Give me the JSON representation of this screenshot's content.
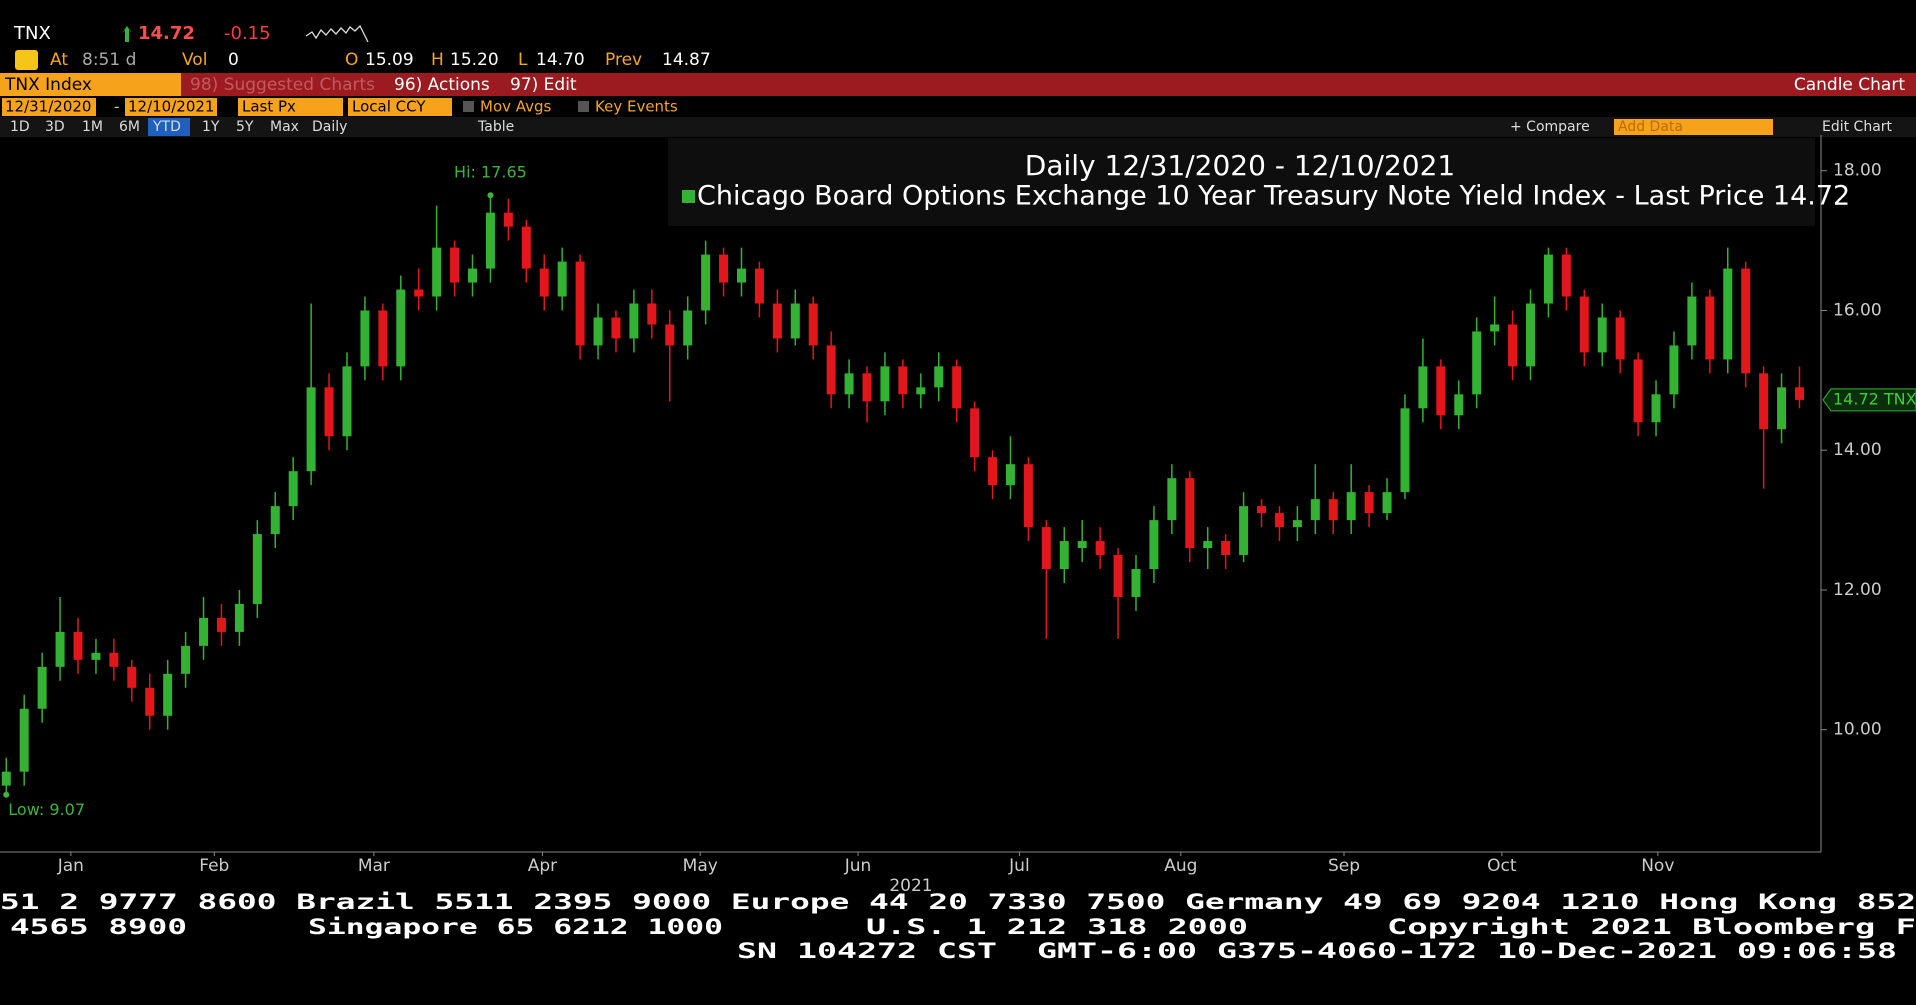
{
  "header": {
    "ticker": "TNX",
    "last": "14.72",
    "change": "-0.15",
    "at": "At",
    "time": "8:51 d",
    "vol_label": "Vol",
    "vol": "0",
    "open_label": "O",
    "open": "15.09",
    "high_label": "H",
    "high": "15.20",
    "low_label": "L",
    "low": "14.70",
    "prev_label": "Prev",
    "prev": "14.87"
  },
  "toolbar": {
    "security": "TNX Index",
    "suggested": "98) Suggested Charts",
    "actions": "96) Actions",
    "edit": "97) Edit",
    "chart_type": "Candle Chart",
    "start": "12/31/2020",
    "dash": "-",
    "end": "12/10/2021",
    "field": "Last Px",
    "currency": "Local CCY",
    "mov_avgs": "Mov Avgs",
    "key_events": "Key Events",
    "periods": [
      "1D",
      "3D",
      "1M",
      "6M",
      "YTD",
      "1Y",
      "5Y",
      "Max"
    ],
    "frequency": "Daily",
    "table": "Table",
    "compare": "+ Compare",
    "add_data": "Add Data",
    "edit_chart": "Edit Chart"
  },
  "footer": {
    "lines": [
      [
        "51 2 9777 8600 Brazil 5511 2395 9000 Europe 44 20 7330 7500 Germany 49 69 9204 1210 Hong Kong 852"
      ],
      [
        "4565 8900",
        "Singapore 65 6212 1000",
        "U.S. 1 212 318 2000",
        "Copyright 2021 Bloomberg F"
      ],
      [
        "SN 104272 CST  GMT-6:00 G375-4060-172 10-Dec-2021 09:06:58"
      ]
    ]
  },
  "chart_data": {
    "type": "candlestick",
    "title": "Daily 12/31/2020 - 12/10/2021",
    "xlabel": "2021",
    "series": [
      {
        "name": "Chicago Board Options Exchange 10 Year Treasury Note Yield Index - Last Price 14.72",
        "color": "#34b234",
        "down_color": "#e3161c",
        "ohlc": [
          [
            9.2,
            9.6,
            9.07,
            9.4
          ],
          [
            9.4,
            10.5,
            9.2,
            10.3
          ],
          [
            10.3,
            11.1,
            10.1,
            10.9
          ],
          [
            10.9,
            11.9,
            10.7,
            11.4
          ],
          [
            11.4,
            11.6,
            10.8,
            11.0
          ],
          [
            11.0,
            11.3,
            10.8,
            11.1
          ],
          [
            11.1,
            11.3,
            10.7,
            10.9
          ],
          [
            10.9,
            11.0,
            10.4,
            10.6
          ],
          [
            10.6,
            10.8,
            10.0,
            10.2
          ],
          [
            10.2,
            11.0,
            10.0,
            10.8
          ],
          [
            10.8,
            11.4,
            10.6,
            11.2
          ],
          [
            11.2,
            11.9,
            11.0,
            11.6
          ],
          [
            11.6,
            11.8,
            11.2,
            11.4
          ],
          [
            11.4,
            12.0,
            11.2,
            11.8
          ],
          [
            11.8,
            13.0,
            11.6,
            12.8
          ],
          [
            12.8,
            13.4,
            12.6,
            13.2
          ],
          [
            13.2,
            13.9,
            13.0,
            13.7
          ],
          [
            13.7,
            16.1,
            13.5,
            14.9
          ],
          [
            14.9,
            15.1,
            14.0,
            14.2
          ],
          [
            14.2,
            15.4,
            14.0,
            15.2
          ],
          [
            15.2,
            16.2,
            15.0,
            16.0
          ],
          [
            16.0,
            16.1,
            15.0,
            15.2
          ],
          [
            15.2,
            16.5,
            15.0,
            16.3
          ],
          [
            16.3,
            16.6,
            16.0,
            16.2
          ],
          [
            16.2,
            17.5,
            16.0,
            16.9
          ],
          [
            16.9,
            17.0,
            16.2,
            16.4
          ],
          [
            16.4,
            16.8,
            16.2,
            16.6
          ],
          [
            16.6,
            17.65,
            16.4,
            17.4
          ],
          [
            17.4,
            17.6,
            17.0,
            17.2
          ],
          [
            17.2,
            17.3,
            16.4,
            16.6
          ],
          [
            16.6,
            16.8,
            16.0,
            16.2
          ],
          [
            16.2,
            16.9,
            16.0,
            16.7
          ],
          [
            16.7,
            16.8,
            15.3,
            15.5
          ],
          [
            15.5,
            16.1,
            15.3,
            15.9
          ],
          [
            15.9,
            16.0,
            15.4,
            15.6
          ],
          [
            15.6,
            16.3,
            15.4,
            16.1
          ],
          [
            16.1,
            16.3,
            15.6,
            15.8
          ],
          [
            15.8,
            16.0,
            14.7,
            15.5
          ],
          [
            15.5,
            16.2,
            15.3,
            16.0
          ],
          [
            16.0,
            17.0,
            15.8,
            16.8
          ],
          [
            16.8,
            16.9,
            16.2,
            16.4
          ],
          [
            16.4,
            16.9,
            16.2,
            16.6
          ],
          [
            16.6,
            16.7,
            15.9,
            16.1
          ],
          [
            16.1,
            16.3,
            15.4,
            15.6
          ],
          [
            15.6,
            16.3,
            15.5,
            16.1
          ],
          [
            16.1,
            16.2,
            15.3,
            15.5
          ],
          [
            15.5,
            15.7,
            14.6,
            14.8
          ],
          [
            14.8,
            15.3,
            14.6,
            15.1
          ],
          [
            15.1,
            15.2,
            14.4,
            14.7
          ],
          [
            14.7,
            15.4,
            14.5,
            15.2
          ],
          [
            15.2,
            15.3,
            14.6,
            14.8
          ],
          [
            14.8,
            15.1,
            14.6,
            14.9
          ],
          [
            14.9,
            15.4,
            14.7,
            15.2
          ],
          [
            15.2,
            15.3,
            14.4,
            14.6
          ],
          [
            14.6,
            14.7,
            13.7,
            13.9
          ],
          [
            13.9,
            14.0,
            13.3,
            13.5
          ],
          [
            13.5,
            14.2,
            13.3,
            13.8
          ],
          [
            13.8,
            13.9,
            12.7,
            12.9
          ],
          [
            12.9,
            13.0,
            11.3,
            12.3
          ],
          [
            12.3,
            12.9,
            12.1,
            12.7
          ],
          [
            12.6,
            13.0,
            12.4,
            12.7
          ],
          [
            12.7,
            12.9,
            12.3,
            12.5
          ],
          [
            12.5,
            12.6,
            11.3,
            11.9
          ],
          [
            11.9,
            12.5,
            11.7,
            12.3
          ],
          [
            12.3,
            13.2,
            12.1,
            13.0
          ],
          [
            13.0,
            13.8,
            12.8,
            13.6
          ],
          [
            13.6,
            13.7,
            12.4,
            12.6
          ],
          [
            12.6,
            12.9,
            12.3,
            12.7
          ],
          [
            12.7,
            12.8,
            12.3,
            12.5
          ],
          [
            12.5,
            13.4,
            12.4,
            13.2
          ],
          [
            13.2,
            13.3,
            12.9,
            13.1
          ],
          [
            13.1,
            13.2,
            12.7,
            12.9
          ],
          [
            12.9,
            13.2,
            12.7,
            13.0
          ],
          [
            13.0,
            13.8,
            12.8,
            13.3
          ],
          [
            13.3,
            13.4,
            12.8,
            13.0
          ],
          [
            13.0,
            13.8,
            12.8,
            13.4
          ],
          [
            13.4,
            13.5,
            12.9,
            13.1
          ],
          [
            13.1,
            13.6,
            13.0,
            13.4
          ],
          [
            13.4,
            14.8,
            13.3,
            14.6
          ],
          [
            14.6,
            15.6,
            14.4,
            15.2
          ],
          [
            15.2,
            15.3,
            14.3,
            14.5
          ],
          [
            14.5,
            15.0,
            14.3,
            14.8
          ],
          [
            14.8,
            15.9,
            14.6,
            15.7
          ],
          [
            15.7,
            16.2,
            15.5,
            15.8
          ],
          [
            15.8,
            16.0,
            15.0,
            15.2
          ],
          [
            15.2,
            16.3,
            15.0,
            16.1
          ],
          [
            16.1,
            16.9,
            15.9,
            16.8
          ],
          [
            16.8,
            16.9,
            16.0,
            16.2
          ],
          [
            16.2,
            16.3,
            15.2,
            15.4
          ],
          [
            15.4,
            16.1,
            15.2,
            15.9
          ],
          [
            15.9,
            16.0,
            15.1,
            15.3
          ],
          [
            15.3,
            15.4,
            14.2,
            14.4
          ],
          [
            14.4,
            15.0,
            14.2,
            14.8
          ],
          [
            14.8,
            15.7,
            14.6,
            15.5
          ],
          [
            15.5,
            16.4,
            15.3,
            16.2
          ],
          [
            16.2,
            16.3,
            15.1,
            15.3
          ],
          [
            15.3,
            16.9,
            15.1,
            16.6
          ],
          [
            16.6,
            16.7,
            14.9,
            15.1
          ],
          [
            15.1,
            15.2,
            13.45,
            14.3
          ],
          [
            14.3,
            15.1,
            14.1,
            14.9
          ],
          [
            14.9,
            15.2,
            14.6,
            14.72
          ]
        ]
      }
    ],
    "xlim": [
      -0.35,
      101.2
    ],
    "xticks": [
      {
        "value": 3.6,
        "label": "Jan"
      },
      {
        "value": 11.6,
        "label": "Feb"
      },
      {
        "value": 20.5,
        "label": "Mar"
      },
      {
        "value": 29.9,
        "label": "Apr"
      },
      {
        "value": 38.7,
        "label": "May"
      },
      {
        "value": 47.5,
        "label": "Jun"
      },
      {
        "value": 56.5,
        "label": "Jul"
      },
      {
        "value": 65.5,
        "label": "Aug"
      },
      {
        "value": 74.6,
        "label": "Sep"
      },
      {
        "value": 83.4,
        "label": "Oct"
      },
      {
        "value": 92.1,
        "label": "Nov"
      }
    ],
    "ylim": [
      8.25,
      18.44
    ],
    "yticks": [
      {
        "value": 10,
        "label": "10.00"
      },
      {
        "value": 12,
        "label": "12.00"
      },
      {
        "value": 14,
        "label": "14.00"
      },
      {
        "value": 16,
        "label": "16.00"
      },
      {
        "value": 18,
        "label": "18.00"
      }
    ],
    "annotations": [
      {
        "text": "Hi: 17.65",
        "value": 17.65,
        "kind": "high"
      },
      {
        "text": "Low: 9.07",
        "value": 9.07,
        "kind": "low"
      }
    ],
    "last_price": {
      "value": 14.72,
      "label": "14.72 TNX"
    }
  }
}
